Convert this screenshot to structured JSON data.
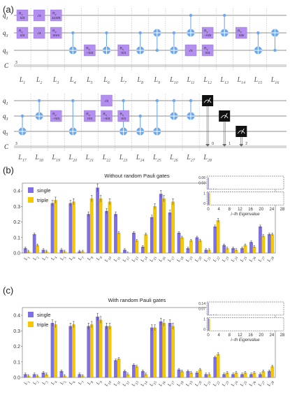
{
  "colors": {
    "gate": "#b48ff0",
    "wire": "#6a6a6a",
    "cx": "#6ca8f0",
    "single": "#7d6fe6",
    "triple": "#f5c800",
    "frame": "#555555"
  },
  "panel_a": {
    "label": "(a)",
    "wires": [
      "q1",
      "q3",
      "q5",
      "C"
    ],
    "top_layers": [
      "L1",
      "L2",
      "L3",
      "L4",
      "L5",
      "L6",
      "L7",
      "L8",
      "L9",
      "L10",
      "L11",
      "L12",
      "L13",
      "L14",
      "L15",
      "L16"
    ],
    "bottom_layers": [
      "L17",
      "L18",
      "L19",
      "L20",
      "L21",
      "L22",
      "L23",
      "L24",
      "L25",
      "L26",
      "L27",
      "L28"
    ],
    "bus_width_label": "3",
    "measure_indices": [
      "0",
      "1",
      "2"
    ],
    "top_gates": [
      {
        "layer": 0,
        "wire": 0,
        "name": "RY",
        "param": "π/2"
      },
      {
        "layer": 0,
        "wire": 1,
        "name": "RY",
        "param": "π/2"
      },
      {
        "layer": 1,
        "wire": 0,
        "name": "√X",
        "param": ""
      },
      {
        "layer": 1,
        "wire": 1,
        "name": "√X",
        "param": ""
      },
      {
        "layer": 2,
        "wire": 0,
        "name": "RY",
        "param": "11π/8"
      },
      {
        "layer": 2,
        "wire": 1,
        "name": "RY",
        "param": "3π/4"
      },
      {
        "layer": 4,
        "wire": 2,
        "name": "RY",
        "param": "−π/4"
      },
      {
        "layer": 6,
        "wire": 2,
        "name": "RY",
        "param": "π/4"
      },
      {
        "layer": 10,
        "wire": 2,
        "name": "√X",
        "param": ""
      },
      {
        "layer": 11,
        "wire": 1,
        "name": "RY",
        "param": "−π/8"
      },
      {
        "layer": 11,
        "wire": 2,
        "name": "RY",
        "param": "π/4"
      },
      {
        "layer": 13,
        "wire": 1,
        "name": "RY",
        "param": "π/8"
      }
    ],
    "bottom_gates": [
      {
        "layer": 2,
        "wire": 1,
        "name": "RY",
        "param": "−π/4"
      },
      {
        "layer": 4,
        "wire": 1,
        "name": "RY",
        "param": "π/4"
      },
      {
        "layer": 5,
        "wire": 0,
        "name": "√X",
        "param": ""
      },
      {
        "layer": 5,
        "wire": 1,
        "name": "RY",
        "param": "−π/4"
      },
      {
        "layer": 6,
        "wire": 1,
        "name": "RY",
        "param": "π/4"
      }
    ]
  },
  "panel_b": {
    "label": "(b)",
    "title": "Without random Pauli gates",
    "inset_ticks_top": [
      "0.06",
      "0.03"
    ],
    "inset_ticks_bottom": [
      "1",
      "0"
    ],
    "inset_xticks": [
      "0",
      "4",
      "8",
      "12",
      "16",
      "20",
      "24",
      "28"
    ],
    "inset_xlabel": "i−th Eigenvalue"
  },
  "panel_c": {
    "label": "(c)",
    "title": "With random Pauli gates",
    "inset_ticks_top": [
      "0.14",
      "0.07"
    ],
    "inset_ticks_bottom": [
      "1",
      "0"
    ],
    "inset_xticks": [
      "0",
      "4",
      "8",
      "12",
      "16",
      "20",
      "24",
      "28"
    ],
    "inset_xlabel": "i−th Eigenvalue"
  },
  "chart_data": [
    {
      "type": "bar",
      "title": "Without random Pauli gates",
      "categories": [
        "L1",
        "L2",
        "L3",
        "L4",
        "L5",
        "L6",
        "L7",
        "L8",
        "L9",
        "L10",
        "L11",
        "L12",
        "L13",
        "L14",
        "L15",
        "L16",
        "L17",
        "L18",
        "L19",
        "L20",
        "L21",
        "L22",
        "L23",
        "L24",
        "L25",
        "L26",
        "L27",
        "L28"
      ],
      "ylim": [
        0,
        0.45
      ],
      "yticks": [
        "0.0",
        "0.1",
        "0.2",
        "0.3",
        "0.4"
      ],
      "legend": "top-left",
      "series": [
        {
          "name": "single",
          "values": [
            0.03,
            0.12,
            0.02,
            0.32,
            0.02,
            0.32,
            0.01,
            0.25,
            0.42,
            0.27,
            0.25,
            0.02,
            0.13,
            0.04,
            0.23,
            0.38,
            0.26,
            0.13,
            0.03,
            0.1,
            0.02,
            0.17,
            0.05,
            0.03,
            0.03,
            0.07,
            0.17,
            0.12
          ]
        },
        {
          "name": "triple",
          "values": [
            0.01,
            0.05,
            0.01,
            0.34,
            0.01,
            0.33,
            0.01,
            0.35,
            0.35,
            0.33,
            0.13,
            0.0,
            0.08,
            0.12,
            0.3,
            0.35,
            0.33,
            0.1,
            0.08,
            0.08,
            0.02,
            0.21,
            0.03,
            0.02,
            0.05,
            0.04,
            0.11,
            0.12
          ]
        }
      ]
    },
    {
      "type": "bar",
      "title": "With random Pauli gates",
      "categories": [
        "L1",
        "L2",
        "L3",
        "L4",
        "L5",
        "L6",
        "L7",
        "L8",
        "L9",
        "L10",
        "L11",
        "L12",
        "L13",
        "L14",
        "L15",
        "L16",
        "L17",
        "L18",
        "L19",
        "L20",
        "L21",
        "L22",
        "L23",
        "L24",
        "L25",
        "L26",
        "L27",
        "L28"
      ],
      "ylim": [
        0,
        0.45
      ],
      "yticks": [
        "0.0",
        "0.1",
        "0.2",
        "0.3",
        "0.4"
      ],
      "legend": "top-left",
      "series": [
        {
          "name": "single",
          "values": [
            0.02,
            0.02,
            0.03,
            0.35,
            0.04,
            0.33,
            0.02,
            0.33,
            0.39,
            0.33,
            0.11,
            0.04,
            0.08,
            0.04,
            0.32,
            0.36,
            0.35,
            0.05,
            0.04,
            0.03,
            0.02,
            0.13,
            0.02,
            0.02,
            0.02,
            0.02,
            0.02,
            0.04
          ]
        },
        {
          "name": "triple",
          "values": [
            0.01,
            0.01,
            0.02,
            0.34,
            0.01,
            0.34,
            0.01,
            0.34,
            0.37,
            0.33,
            0.12,
            0.02,
            0.07,
            0.02,
            0.32,
            0.35,
            0.33,
            0.04,
            0.03,
            0.05,
            0.02,
            0.15,
            0.03,
            0.03,
            0.03,
            0.03,
            0.04,
            0.07
          ]
        }
      ]
    }
  ]
}
